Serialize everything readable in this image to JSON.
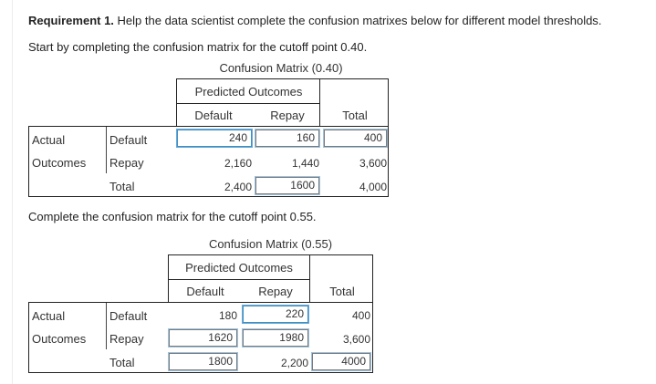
{
  "intro": {
    "req_label": "Requirement 1.",
    "req_text": "Help the data scientist complete the confusion matrixes below for different model thresholds.",
    "start_text": "Start by completing the confusion matrix for the cutoff point 0.40."
  },
  "matrix1": {
    "title": "Confusion Matrix (0.40)",
    "predicted_header": "Predicted Outcomes",
    "col_default": "Default",
    "col_repay": "Repay",
    "col_total": "Total",
    "actual_label": "Actual",
    "outcomes_label": "Outcomes",
    "row_default": "Default",
    "row_repay": "Repay",
    "row_total": "Total",
    "cells": {
      "default_default": "240",
      "default_repay": "160",
      "default_total": "400",
      "repay_default": "2,160",
      "repay_repay": "1,440",
      "repay_total": "3,600",
      "total_default": "2,400",
      "total_repay": "1600",
      "total_total": "4,000"
    }
  },
  "mid_text": "Complete the confusion matrix for the cutoff point 0.55.",
  "matrix2": {
    "title": "Confusion Matrix (0.55)",
    "predicted_header": "Predicted Outcomes",
    "col_default": "Default",
    "col_repay": "Repay",
    "col_total": "Total",
    "actual_label": "Actual",
    "outcomes_label": "Outcomes",
    "row_default": "Default",
    "row_repay": "Repay",
    "row_total": "Total",
    "cells": {
      "default_default": "180",
      "default_repay": "220",
      "default_total": "400",
      "repay_default": "1620",
      "repay_repay": "1980",
      "repay_total": "3,600",
      "total_default": "1800",
      "total_repay": "2,200",
      "total_total": "4000"
    }
  }
}
